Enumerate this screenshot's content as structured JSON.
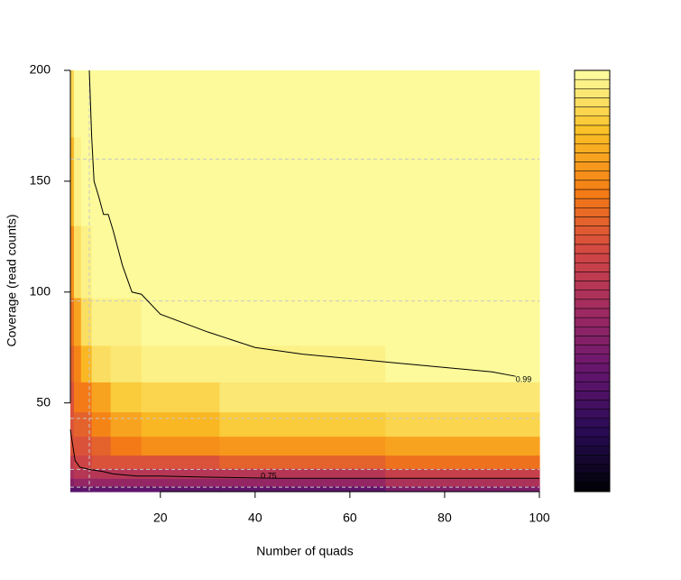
{
  "chart_data": {
    "type": "contour",
    "x_label": "Number of quads",
    "y_label": "Coverage (read counts)",
    "xlim": [
      1,
      100
    ],
    "ylim": [
      10,
      200
    ],
    "xticks": [
      20,
      40,
      60,
      80,
      100
    ],
    "yticks": [
      50,
      100,
      150,
      200
    ],
    "palette": "inferno",
    "zlim": [
      0.5,
      1
    ],
    "levels": 46,
    "x": [
      1,
      2.5,
      4,
      7,
      12,
      20,
      45,
      90
    ],
    "y": [
      11,
      14,
      18,
      23,
      30,
      40,
      52,
      67,
      85,
      110,
      150,
      190
    ],
    "z": [
      [
        0.62,
        0.63,
        0.64,
        0.64,
        0.64,
        0.64,
        0.64,
        0.67
      ],
      [
        0.68,
        0.7,
        0.7,
        0.7,
        0.7,
        0.7,
        0.7,
        0.73
      ],
      [
        0.72,
        0.74,
        0.74,
        0.74,
        0.74,
        0.74,
        0.74,
        0.77
      ],
      [
        0.76,
        0.78,
        0.78,
        0.8,
        0.8,
        0.8,
        0.82,
        0.84
      ],
      [
        0.8,
        0.8,
        0.8,
        0.82,
        0.85,
        0.87,
        0.89,
        0.9
      ],
      [
        0.8,
        0.82,
        0.82,
        0.86,
        0.9,
        0.92,
        0.94,
        0.95
      ],
      [
        0.8,
        0.85,
        0.85,
        0.9,
        0.94,
        0.955,
        0.97,
        0.975
      ],
      [
        0.82,
        0.86,
        0.92,
        0.96,
        0.975,
        0.982,
        0.988,
        0.99
      ],
      [
        0.84,
        0.9,
        0.96,
        0.98,
        0.988,
        0.991,
        0.994,
        0.995
      ],
      [
        0.88,
        0.96,
        0.984,
        0.992,
        0.995,
        0.996,
        0.998,
        0.998
      ],
      [
        0.92,
        0.984,
        0.994,
        0.997,
        0.998,
        0.999,
        0.999,
        0.999
      ],
      [
        0.95,
        0.994,
        0.998,
        0.999,
        1,
        1,
        1,
        1
      ]
    ],
    "contours": [
      {
        "level": 0.99,
        "x": [
          5,
          5.5,
          6,
          7,
          8,
          9,
          10,
          12,
          14,
          16,
          20,
          30,
          40,
          50,
          60,
          70,
          80,
          90,
          95
        ],
        "y": [
          200,
          170,
          150,
          143,
          135,
          135,
          128,
          112,
          100,
          99,
          90,
          82,
          75,
          72,
          70,
          68,
          66,
          64,
          62
        ]
      },
      {
        "level": 0.75,
        "x": [
          1,
          2,
          3,
          5,
          8,
          10,
          15,
          20,
          30,
          45,
          60,
          80,
          100
        ],
        "y": [
          38,
          24,
          21,
          20,
          19,
          18,
          17,
          17,
          16.5,
          16,
          16,
          16,
          16
        ]
      }
    ],
    "hlines": [
      160,
      96,
      43,
      20,
      12
    ],
    "vlines": [
      5
    ]
  }
}
